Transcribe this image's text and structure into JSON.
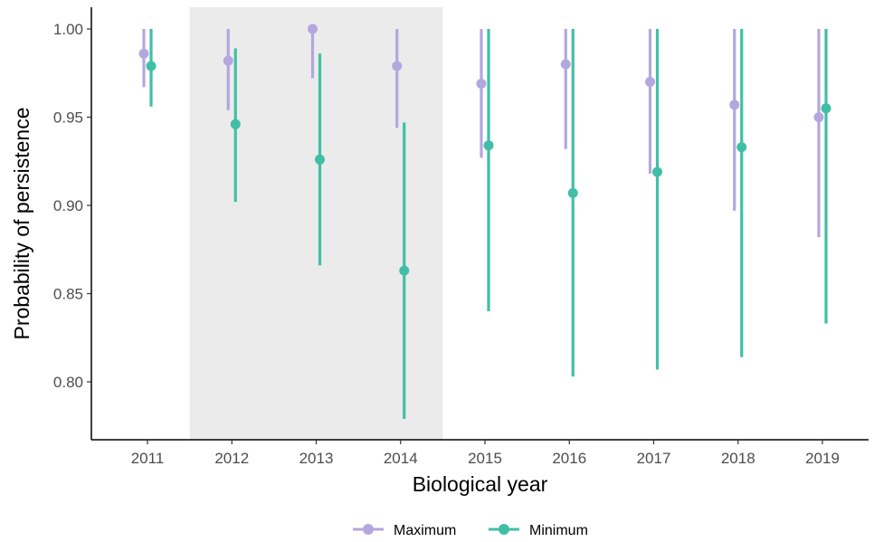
{
  "chart_data": {
    "type": "scatter",
    "title": "",
    "xlabel": "Biological year",
    "ylabel": "Probability of persistence",
    "categories": [
      "2011",
      "2012",
      "2013",
      "2014",
      "2015",
      "2016",
      "2017",
      "2018",
      "2019"
    ],
    "ylim": [
      0.78,
      1.0
    ],
    "yticks": [
      "0.80",
      "0.85",
      "0.90",
      "0.95",
      "1.00"
    ],
    "grid": false,
    "legend_position": "bottom",
    "highlight_band": {
      "from": "2012",
      "to": "2014",
      "color": "#ebebeb"
    },
    "series": [
      {
        "name": "Maximum",
        "color": "#b3a7de",
        "values": [
          0.986,
          0.982,
          1.0,
          0.979,
          0.969,
          0.98,
          0.97,
          0.957,
          0.95
        ],
        "lower": [
          0.967,
          0.954,
          0.972,
          0.944,
          0.927,
          0.932,
          0.918,
          0.897,
          0.882
        ],
        "upper": [
          1.0,
          1.0,
          1.0,
          1.0,
          1.0,
          1.0,
          1.0,
          1.0,
          1.0
        ]
      },
      {
        "name": "Minimum",
        "color": "#40bfa6",
        "values": [
          0.979,
          0.946,
          0.926,
          0.863,
          0.934,
          0.907,
          0.919,
          0.933,
          0.955
        ],
        "lower": [
          0.956,
          0.902,
          0.866,
          0.779,
          0.84,
          0.803,
          0.807,
          0.814,
          0.833
        ],
        "upper": [
          1.0,
          0.989,
          0.986,
          0.947,
          1.0,
          1.0,
          1.0,
          1.0,
          1.0
        ]
      }
    ]
  }
}
